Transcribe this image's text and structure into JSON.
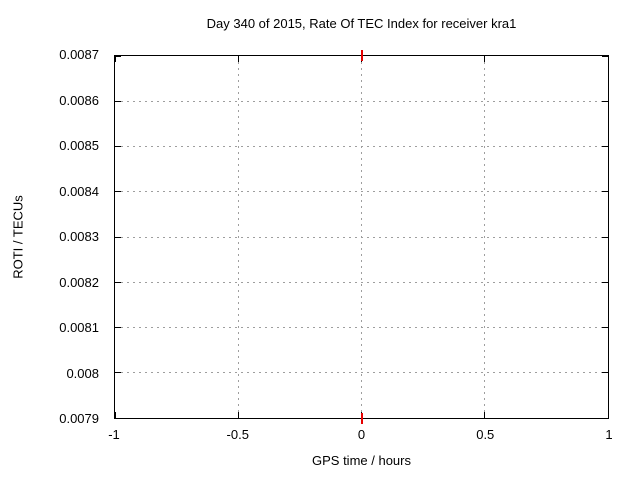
{
  "chart_data": {
    "type": "line",
    "title": "Day 340 of 2015, Rate Of TEC Index for receiver kra1",
    "xlabel": "GPS time / hours",
    "ylabel": "ROTI / TECUs",
    "xlim": [
      -1,
      1
    ],
    "ylim": [
      0.0079,
      0.0087
    ],
    "x_ticks": {
      "values": [
        -1,
        -0.5,
        0,
        0.5,
        1
      ],
      "labels": [
        "-1",
        "-0.5",
        "0",
        "0.5",
        "1"
      ]
    },
    "y_ticks": {
      "values": [
        0.0079,
        0.008,
        0.0081,
        0.0082,
        0.0083,
        0.0084,
        0.0085,
        0.0086,
        0.0087
      ],
      "labels": [
        "0.0079",
        "0.008",
        "0.0081",
        "0.0082",
        "0.0083",
        "0.0084",
        "0.0085",
        "0.0086",
        "0.0087"
      ]
    },
    "grid": true,
    "grid_style": "dotted",
    "legend": false,
    "series": [],
    "annotations": [
      {
        "type": "zero-axis-marker",
        "x": 0,
        "color": "#e60000",
        "positions": [
          "top-border",
          "bottom-border"
        ],
        "note": "short red vertical tick crossing the plot border at x=0 on top and bottom edges"
      }
    ]
  },
  "colors": {
    "background": "#ffffff",
    "border": "#000000",
    "grid": "#9e9e9e",
    "text": "#000000",
    "zero_marker": "#e60000"
  }
}
